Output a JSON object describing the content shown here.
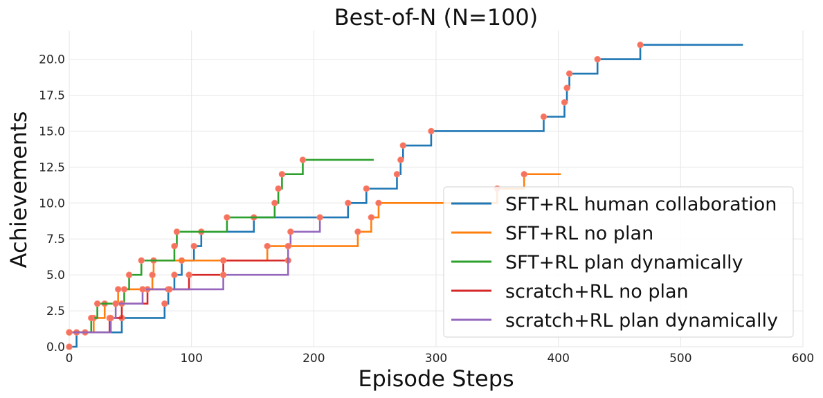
{
  "chart_data": {
    "type": "line",
    "title": "Best-of-N (N=100)",
    "xlabel": "Episode Steps",
    "ylabel": "Achievements",
    "xlim": [
      0,
      600
    ],
    "ylim": [
      0,
      22
    ],
    "xticks": [
      0,
      100,
      200,
      300,
      400,
      500,
      600
    ],
    "yticks": [
      0.0,
      2.5,
      5.0,
      7.5,
      10.0,
      12.5,
      15.0,
      17.5,
      20.0
    ],
    "xtick_labels": [
      "0",
      "100",
      "200",
      "300",
      "400",
      "500",
      "600"
    ],
    "ytick_labels": [
      "0.0",
      "2.5",
      "5.0",
      "7.5",
      "10.0",
      "12.5",
      "15.0",
      "17.5",
      "20.0"
    ],
    "grid": true,
    "legend_position": "lower-right",
    "series": [
      {
        "name": "SFT+RL human collaboration",
        "color": "#1f77b4",
        "steps": [
          [
            0,
            0
          ],
          [
            6,
            1
          ],
          [
            43,
            2
          ],
          [
            78,
            3
          ],
          [
            81,
            4
          ],
          [
            86,
            5
          ],
          [
            92,
            6
          ],
          [
            102,
            7
          ],
          [
            108,
            8
          ],
          [
            151,
            9
          ],
          [
            228,
            10
          ],
          [
            243,
            11
          ],
          [
            268,
            12
          ],
          [
            271,
            13
          ],
          [
            273,
            14
          ],
          [
            296,
            15
          ],
          [
            388,
            16
          ],
          [
            405,
            17
          ],
          [
            407,
            18
          ],
          [
            409,
            19
          ],
          [
            432,
            20
          ],
          [
            467,
            21
          ]
        ],
        "end_x": 551
      },
      {
        "name": "SFT+RL no plan",
        "color": "#ff7f0e",
        "steps": [
          [
            0,
            1
          ],
          [
            20,
            2
          ],
          [
            29,
            3
          ],
          [
            40,
            4
          ],
          [
            68,
            5
          ],
          [
            69,
            6
          ],
          [
            162,
            7
          ],
          [
            236,
            8
          ],
          [
            247,
            9
          ],
          [
            253,
            10
          ],
          [
            350,
            11
          ],
          [
            372,
            12
          ]
        ],
        "end_x": 402
      },
      {
        "name": "SFT+RL plan dynamically",
        "color": "#2ca02c",
        "steps": [
          [
            0,
            1
          ],
          [
            18,
            2
          ],
          [
            23,
            3
          ],
          [
            45,
            4
          ],
          [
            49,
            5
          ],
          [
            59,
            6
          ],
          [
            86,
            7
          ],
          [
            88,
            8
          ],
          [
            129,
            9
          ],
          [
            168,
            10
          ],
          [
            171,
            11
          ],
          [
            174,
            12
          ],
          [
            191,
            13
          ]
        ],
        "end_x": 249
      },
      {
        "name": "scratch+RL no plan",
        "color": "#d62728",
        "steps": [
          [
            0,
            1
          ],
          [
            13,
            1
          ],
          [
            33,
            2
          ],
          [
            43,
            3
          ],
          [
            64,
            4
          ],
          [
            98,
            5
          ],
          [
            126,
            6
          ],
          [
            179,
            6
          ]
        ],
        "end_x": 179
      },
      {
        "name": "scratch+RL plan dynamically",
        "color": "#9467bd",
        "steps": [
          [
            0,
            1
          ],
          [
            34,
            2
          ],
          [
            38,
            3
          ],
          [
            60,
            4
          ],
          [
            82,
            4
          ],
          [
            126,
            5
          ],
          [
            179,
            7
          ],
          [
            181,
            8
          ],
          [
            205,
            9
          ]
        ],
        "end_x": 205
      }
    ]
  }
}
